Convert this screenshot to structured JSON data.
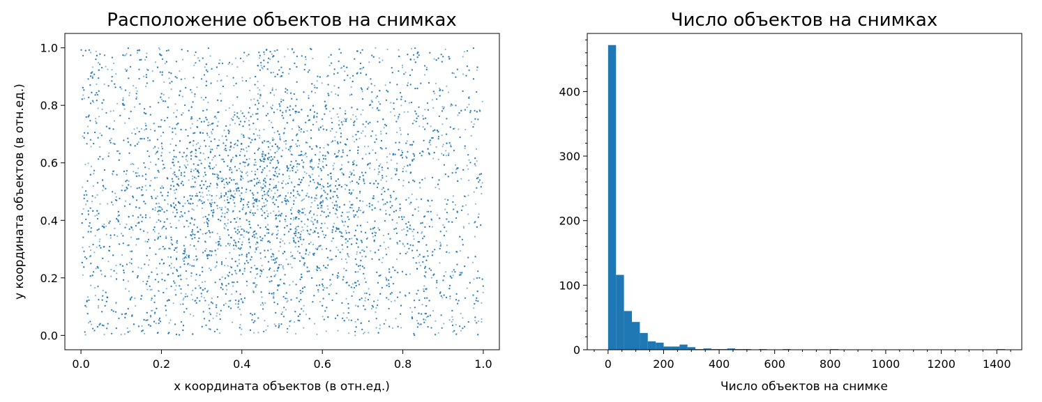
{
  "colors": {
    "series": "#1f77b4",
    "axes": "#000000",
    "background": "#ffffff"
  },
  "chart_data": [
    {
      "type": "scatter",
      "title": "Расположение объектов на снимках",
      "xlabel": "x координата объектов (в отн.ед.)",
      "ylabel": "y координата объектов (в отн.ед.)",
      "xlim": [
        -0.04,
        1.04
      ],
      "ylim": [
        -0.05,
        1.05
      ],
      "xticks": [
        "0.0",
        "0.2",
        "0.4",
        "0.6",
        "0.8",
        "1.0"
      ],
      "yticks": [
        "0.0",
        "0.2",
        "0.4",
        "0.6",
        "0.8",
        "1.0"
      ],
      "point_distribution": {
        "x_range": [
          0.0,
          1.0
        ],
        "y_range": [
          0.0,
          1.0
        ],
        "dense_center": [
          0.45,
          0.48
        ]
      }
    },
    {
      "type": "bar",
      "title": "Число объектов на снимках",
      "xlabel": "Число объектов на снимке",
      "ylabel": "",
      "xlim": [
        -75,
        1490
      ],
      "ylim": [
        0,
        490
      ],
      "xticks": [
        "0",
        "200",
        "400",
        "600",
        "800",
        "1000",
        "1200",
        "1400"
      ],
      "yticks": [
        "0",
        "100",
        "200",
        "300",
        "400"
      ],
      "bin_width": 28.6,
      "bins": [
        {
          "x": 0,
          "count": 472
        },
        {
          "x": 28.6,
          "count": 116
        },
        {
          "x": 57.2,
          "count": 60
        },
        {
          "x": 85.8,
          "count": 43
        },
        {
          "x": 114.4,
          "count": 26
        },
        {
          "x": 143,
          "count": 13
        },
        {
          "x": 171.6,
          "count": 11
        },
        {
          "x": 200.2,
          "count": 5
        },
        {
          "x": 228.8,
          "count": 5
        },
        {
          "x": 257.4,
          "count": 8
        },
        {
          "x": 286,
          "count": 4
        },
        {
          "x": 314.6,
          "count": 1
        },
        {
          "x": 343.2,
          "count": 2
        },
        {
          "x": 371.8,
          "count": 1
        },
        {
          "x": 400.4,
          "count": 1
        },
        {
          "x": 429,
          "count": 2
        },
        {
          "x": 457.6,
          "count": 1
        },
        {
          "x": 486.2,
          "count": 1
        },
        {
          "x": 543.4,
          "count": 1
        },
        {
          "x": 629.2,
          "count": 1
        },
        {
          "x": 800.8,
          "count": 1
        },
        {
          "x": 1401,
          "count": 1
        }
      ]
    }
  ]
}
